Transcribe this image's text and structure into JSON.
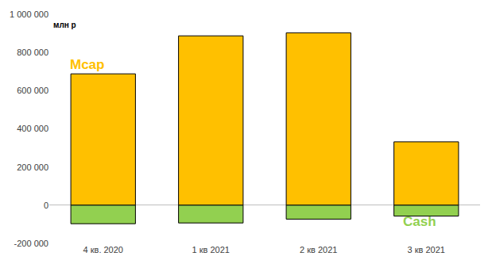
{
  "chart_data": {
    "type": "bar",
    "stacked": true,
    "y_label": "млн р",
    "categories": [
      "4 кв. 2020",
      "1 кв 2021",
      "2 кв 2021",
      "3 кв 2021"
    ],
    "series": [
      {
        "name": "Mcap",
        "color": "#ffc000",
        "values": [
          688000,
          887000,
          903000,
          332000
        ]
      },
      {
        "name": "Cash",
        "color": "#92d050",
        "values": [
          -97000,
          -93000,
          -73000,
          -57000
        ]
      }
    ],
    "ylim": [
      -200000,
      1000000
    ],
    "yticks": [
      {
        "value": -200000,
        "label": "-200 000"
      },
      0,
      {
        "value": 200000,
        "label": "200 000"
      },
      {
        "value": 400000,
        "label": "400 000"
      },
      {
        "value": 600000,
        "label": "600 000"
      },
      {
        "value": 800000,
        "label": "800 000"
      },
      {
        "value": 1000000,
        "label": "1 000 000"
      }
    ],
    "grid": false
  }
}
